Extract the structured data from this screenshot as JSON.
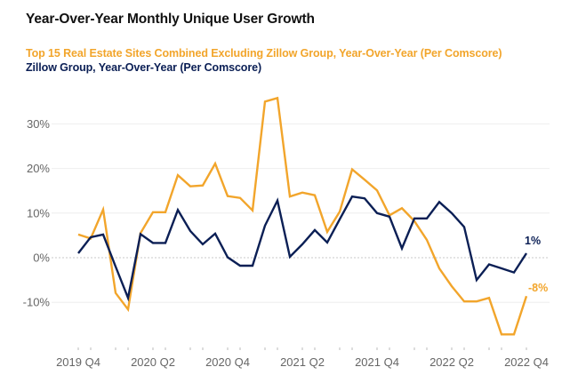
{
  "chart_data": {
    "type": "line",
    "title": "Year-Over-Year Monthly Unique User Growth",
    "xlabel": "",
    "ylabel": "",
    "ylim": [
      -20,
      37
    ],
    "grid": true,
    "legend_placement": "top-left",
    "yticks": [
      {
        "value": 30,
        "label": "30%"
      },
      {
        "value": 20,
        "label": "20%"
      },
      {
        "value": 10,
        "label": "10%"
      },
      {
        "value": 0,
        "label": "0%"
      },
      {
        "value": -10,
        "label": "-10%"
      }
    ],
    "xticks": [
      {
        "index": 0,
        "label": "2019 Q4"
      },
      {
        "index": 6,
        "label": "2020 Q2"
      },
      {
        "index": 12,
        "label": "2020 Q4"
      },
      {
        "index": 18,
        "label": "2021 Q2"
      },
      {
        "index": 24,
        "label": "2021 Q4"
      },
      {
        "index": 30,
        "label": "2022 Q2"
      },
      {
        "index": 36,
        "label": "2022 Q4"
      }
    ],
    "x_count": 37,
    "x_unit": "month",
    "series": [
      {
        "name": "Top 15 Real Estate Sites Combined Excluding Zillow Group, Year-Over-Year (Per Comscore)",
        "color": "#F2A52B",
        "end_label": "-8%",
        "values": [
          5.2,
          4.3,
          10.8,
          -7.9,
          -11.6,
          5.5,
          10.2,
          10.2,
          18.5,
          16.0,
          16.2,
          21.1,
          13.8,
          13.4,
          10.6,
          35.0,
          35.8,
          13.7,
          14.6,
          14.0,
          5.8,
          10.3,
          19.8,
          17.5,
          15.1,
          9.5,
          11.1,
          8.2,
          4.0,
          -2.4,
          -6.4,
          -9.8,
          -9.8,
          -9.0,
          -17.2,
          -17.2,
          -8.6
        ]
      },
      {
        "name": "Zillow Group, Year-Over-Year (Per Comscore)",
        "color": "#0B1F55",
        "end_label": "1%",
        "values": [
          1.0,
          4.6,
          5.2,
          -2.0,
          -9.0,
          5.3,
          3.3,
          3.3,
          10.7,
          6.0,
          3.0,
          5.4,
          0.1,
          -1.8,
          -1.8,
          7.2,
          12.8,
          0.2,
          3.0,
          6.2,
          3.4,
          8.6,
          13.7,
          13.3,
          10.0,
          9.2,
          2.1,
          8.8,
          8.8,
          12.5,
          10.0,
          6.9,
          -5.0,
          -1.5,
          -2.4,
          -3.3,
          1.0
        ]
      }
    ]
  },
  "colors": {
    "title": "#111111",
    "axis_text": "#666666",
    "grid": "#EEEEEE",
    "zero_line": "#C8C8C8"
  }
}
